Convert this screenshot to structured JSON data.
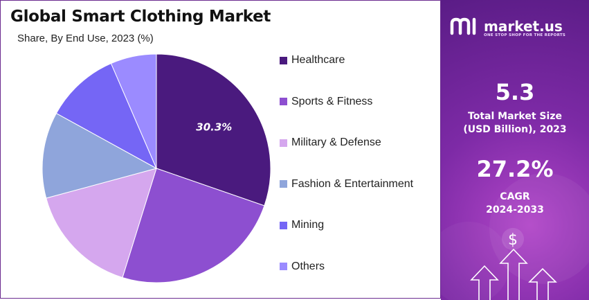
{
  "header": {
    "title": "Global Smart Clothing Market",
    "subtitle": "Share, By End Use, 2023 (%)"
  },
  "chart_data": {
    "type": "pie",
    "title": "Global Smart Clothing Market",
    "subtitle": "Share, By End Use, 2023 (%)",
    "slices": [
      {
        "label": "Healthcare",
        "value": 30.3,
        "color": "#4a1a7e",
        "value_label": "30.3%"
      },
      {
        "label": "Sports & Fitness",
        "value": 24.5,
        "color": "#8d4fd0",
        "value_label": ""
      },
      {
        "label": "Military & Defense",
        "value": 16.0,
        "color": "#d5a7ee",
        "value_label": ""
      },
      {
        "label": "Fashion & Entertainment",
        "value": 12.2,
        "color": "#8fa5db",
        "value_label": ""
      },
      {
        "label": "Mining",
        "value": 10.5,
        "color": "#7566f5",
        "value_label": ""
      },
      {
        "label": "Others",
        "value": 6.5,
        "color": "#9b8bff",
        "value_label": ""
      }
    ],
    "legend_position": "right"
  },
  "brand": {
    "name": "market.us",
    "tagline": "ONE STOP SHOP FOR THE REPORTS"
  },
  "stats": {
    "market_size_value": "5.3",
    "market_size_label_1": "Total Market Size",
    "market_size_label_2": "(USD Billion), 2023",
    "cagr_value": "27.2%",
    "cagr_label_1": "CAGR",
    "cagr_label_2": "2024-2033"
  },
  "icons": {
    "logo": "market-us-logo-icon",
    "currency": "dollar-icon",
    "growth": "up-arrow-icon"
  }
}
